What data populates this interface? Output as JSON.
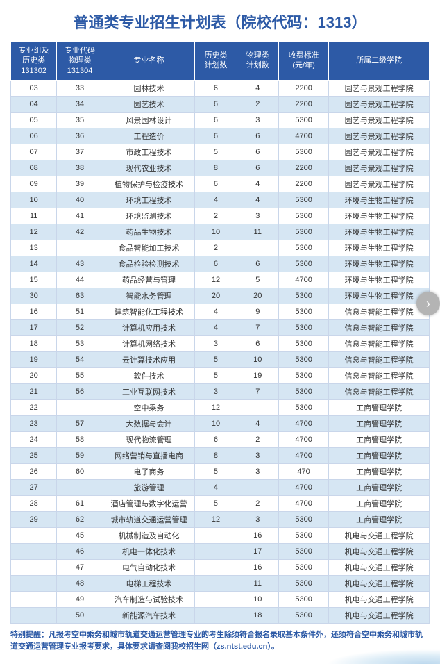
{
  "title": "普通类专业招生计划表（院校代码：1313）",
  "headers": [
    "专业组及\n历史类\n131302",
    "专业代码\n物理类\n131304",
    "专业名称",
    "历史类\n计划数",
    "物理类\n计划数",
    "收费标准\n(元/年)",
    "所属二级学院"
  ],
  "colWidths": [
    "11%",
    "11%",
    "22%",
    "10%",
    "10%",
    "12%",
    "24%"
  ],
  "rows": [
    [
      "03",
      "33",
      "园林技术",
      "6",
      "4",
      "2200",
      "园艺与景观工程学院"
    ],
    [
      "04",
      "34",
      "园艺技术",
      "6",
      "2",
      "2200",
      "园艺与景观工程学院"
    ],
    [
      "05",
      "35",
      "风景园林设计",
      "6",
      "3",
      "5300",
      "园艺与景观工程学院"
    ],
    [
      "06",
      "36",
      "工程造价",
      "6",
      "6",
      "4700",
      "园艺与景观工程学院"
    ],
    [
      "07",
      "37",
      "市政工程技术",
      "5",
      "6",
      "5300",
      "园艺与景观工程学院"
    ],
    [
      "08",
      "38",
      "现代农业技术",
      "8",
      "6",
      "2200",
      "园艺与景观工程学院"
    ],
    [
      "09",
      "39",
      "植物保护与检疫技术",
      "6",
      "4",
      "2200",
      "园艺与景观工程学院"
    ],
    [
      "10",
      "40",
      "环境工程技术",
      "4",
      "4",
      "5300",
      "环境与生物工程学院"
    ],
    [
      "11",
      "41",
      "环境监测技术",
      "2",
      "3",
      "5300",
      "环境与生物工程学院"
    ],
    [
      "12",
      "42",
      "药品生物技术",
      "10",
      "11",
      "5300",
      "环境与生物工程学院"
    ],
    [
      "13",
      "",
      "食品智能加工技术",
      "2",
      "",
      "5300",
      "环境与生物工程学院"
    ],
    [
      "14",
      "43",
      "食品检验检测技术",
      "6",
      "6",
      "5300",
      "环境与生物工程学院"
    ],
    [
      "15",
      "44",
      "药品经营与管理",
      "12",
      "5",
      "4700",
      "环境与生物工程学院"
    ],
    [
      "30",
      "63",
      "智能水务管理",
      "20",
      "20",
      "5300",
      "环境与生物工程学院"
    ],
    [
      "16",
      "51",
      "建筑智能化工程技术",
      "4",
      "9",
      "5300",
      "信息与智能工程学院"
    ],
    [
      "17",
      "52",
      "计算机应用技术",
      "4",
      "7",
      "5300",
      "信息与智能工程学院"
    ],
    [
      "18",
      "53",
      "计算机网络技术",
      "3",
      "6",
      "5300",
      "信息与智能工程学院"
    ],
    [
      "19",
      "54",
      "云计算技术应用",
      "5",
      "10",
      "5300",
      "信息与智能工程学院"
    ],
    [
      "20",
      "55",
      "软件技术",
      "5",
      "19",
      "5300",
      "信息与智能工程学院"
    ],
    [
      "21",
      "56",
      "工业互联网技术",
      "3",
      "7",
      "5300",
      "信息与智能工程学院"
    ],
    [
      "22",
      "",
      "空中乘务",
      "12",
      "",
      "5300",
      "工商管理学院"
    ],
    [
      "23",
      "57",
      "大数据与会计",
      "10",
      "4",
      "4700",
      "工商管理学院"
    ],
    [
      "24",
      "58",
      "现代物流管理",
      "6",
      "2",
      "4700",
      "工商管理学院"
    ],
    [
      "25",
      "59",
      "网络营销与直播电商",
      "8",
      "3",
      "4700",
      "工商管理学院"
    ],
    [
      "26",
      "60",
      "电子商务",
      "5",
      "3",
      "470",
      "工商管理学院"
    ],
    [
      "27",
      "",
      "旅游管理",
      "4",
      "",
      "4700",
      "工商管理学院"
    ],
    [
      "28",
      "61",
      "酒店管理与数字化运营",
      "5",
      "2",
      "4700",
      "工商管理学院"
    ],
    [
      "29",
      "62",
      "城市轨道交通运营管理",
      "12",
      "3",
      "5300",
      "工商管理学院"
    ],
    [
      "",
      "45",
      "机械制造及自动化",
      "",
      "16",
      "5300",
      "机电与交通工程学院"
    ],
    [
      "",
      "46",
      "机电一体化技术",
      "",
      "17",
      "5300",
      "机电与交通工程学院"
    ],
    [
      "",
      "47",
      "电气自动化技术",
      "",
      "16",
      "5300",
      "机电与交通工程学院"
    ],
    [
      "",
      "48",
      "电梯工程技术",
      "",
      "11",
      "5300",
      "机电与交通工程学院"
    ],
    [
      "",
      "49",
      "汽车制造与试验技术",
      "",
      "10",
      "5300",
      "机电与交通工程学院"
    ],
    [
      "",
      "50",
      "新能源汽车技术",
      "",
      "18",
      "5300",
      "机电与交通工程学院"
    ]
  ],
  "note": "特别提醒：凡报考空中乘务和城市轨道交通运营管理专业的考生除须符合报名录取基本条件外，还须符合空中乘务和城市轨道交通运营管理专业报考要求，具体要求请查阅我校招生网（zs.ntst.edu.cn）。",
  "arrowGlyph": "›"
}
